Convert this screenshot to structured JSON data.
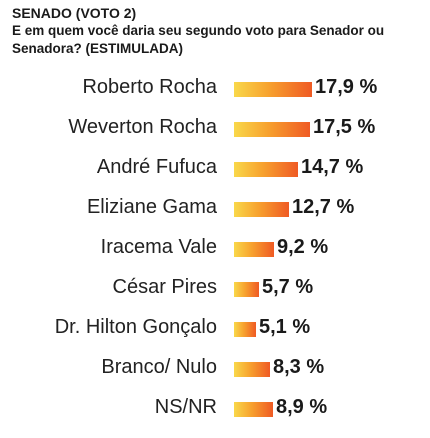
{
  "chart_data": {
    "type": "bar",
    "orientation": "horizontal",
    "title": "SENADO (VOTO 2)",
    "subtitle": "E em quem você daria seu segundo voto para Senador ou Senadora? (ESTIMULADA)",
    "categories": [
      "Roberto Rocha",
      "Weverton Rocha",
      "André Fufuca",
      "Eliziane Gama",
      "Iracema Vale",
      "César Pires",
      "Dr. Hilton Gonçalo",
      "Branco/ Nulo",
      "NS/NR"
    ],
    "values": [
      17.9,
      17.5,
      14.7,
      12.7,
      9.2,
      5.7,
      5.1,
      8.3,
      8.9
    ],
    "value_labels": [
      "17,9 %",
      "17,5 %",
      "14,7 %",
      "12,7 %",
      "9,2 %",
      "5,7 %",
      "5,1 %",
      "8,3 %",
      "8,9 %"
    ],
    "bar_colors": [
      "#f9d84a",
      "#f7a12e",
      "#ef5a24"
    ],
    "xlabel": "",
    "ylabel": "",
    "grid": false,
    "legend": "none"
  }
}
